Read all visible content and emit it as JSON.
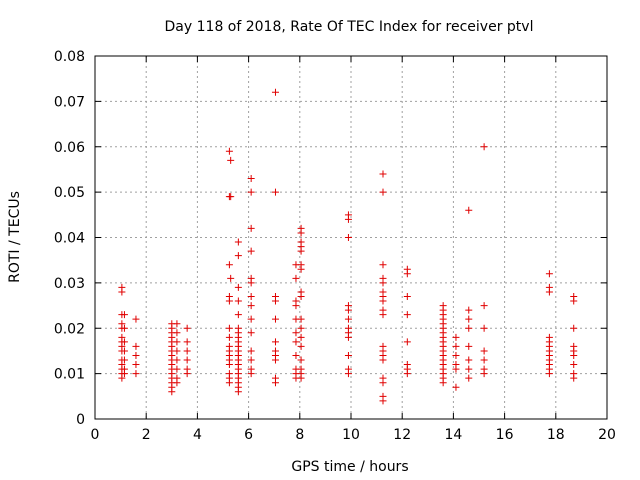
{
  "chart_data": {
    "type": "scatter",
    "title": "Day 118 of 2018, Rate Of TEC Index for receiver ptvl",
    "xlabel": "GPS time / hours",
    "ylabel": "ROTI / TECUs",
    "xlim": [
      0,
      20
    ],
    "ylim": [
      0,
      0.08
    ],
    "x_ticks": [
      0,
      2,
      4,
      6,
      8,
      10,
      12,
      14,
      16,
      18,
      20
    ],
    "x_tick_labels": [
      "0",
      "2",
      "4",
      "6",
      "8",
      "10",
      "12",
      "14",
      "16",
      "18",
      "20"
    ],
    "y_ticks": [
      0,
      0.01,
      0.02,
      0.03,
      0.04,
      0.05,
      0.06,
      0.07,
      0.08
    ],
    "y_tick_labels": [
      "0",
      "0.01",
      "0.02",
      "0.03",
      "0.04",
      "0.05",
      "0.06",
      "0.07",
      "0.08"
    ],
    "grid": true,
    "marker": "+",
    "color": "#e00000",
    "series": [
      {
        "name": "ROTI",
        "points": [
          [
            1.05,
            0.029
          ],
          [
            1.05,
            0.028
          ],
          [
            1.05,
            0.023
          ],
          [
            1.05,
            0.021
          ],
          [
            1.05,
            0.02
          ],
          [
            1.05,
            0.018
          ],
          [
            1.05,
            0.017
          ],
          [
            1.05,
            0.016
          ],
          [
            1.05,
            0.015
          ],
          [
            1.05,
            0.013
          ],
          [
            1.05,
            0.012
          ],
          [
            1.05,
            0.011
          ],
          [
            1.05,
            0.01
          ],
          [
            1.05,
            0.009
          ],
          [
            1.15,
            0.023
          ],
          [
            1.15,
            0.02
          ],
          [
            1.15,
            0.017
          ],
          [
            1.15,
            0.015
          ],
          [
            1.15,
            0.013
          ],
          [
            1.15,
            0.011
          ],
          [
            1.15,
            0.01
          ],
          [
            1.6,
            0.022
          ],
          [
            1.6,
            0.016
          ],
          [
            1.6,
            0.014
          ],
          [
            1.6,
            0.012
          ],
          [
            1.6,
            0.01
          ],
          [
            3.0,
            0.021
          ],
          [
            3.0,
            0.02
          ],
          [
            3.0,
            0.019
          ],
          [
            3.0,
            0.018
          ],
          [
            3.0,
            0.017
          ],
          [
            3.0,
            0.016
          ],
          [
            3.0,
            0.015
          ],
          [
            3.0,
            0.014
          ],
          [
            3.0,
            0.013
          ],
          [
            3.0,
            0.012
          ],
          [
            3.0,
            0.011
          ],
          [
            3.0,
            0.01
          ],
          [
            3.0,
            0.009
          ],
          [
            3.0,
            0.008
          ],
          [
            3.0,
            0.007
          ],
          [
            3.0,
            0.006
          ],
          [
            3.2,
            0.021
          ],
          [
            3.2,
            0.019
          ],
          [
            3.2,
            0.017
          ],
          [
            3.2,
            0.015
          ],
          [
            3.2,
            0.013
          ],
          [
            3.2,
            0.011
          ],
          [
            3.2,
            0.009
          ],
          [
            3.2,
            0.008
          ],
          [
            3.6,
            0.02
          ],
          [
            3.6,
            0.017
          ],
          [
            3.6,
            0.015
          ],
          [
            3.6,
            0.013
          ],
          [
            3.6,
            0.011
          ],
          [
            3.6,
            0.01
          ],
          [
            5.25,
            0.059
          ],
          [
            5.3,
            0.057
          ],
          [
            5.25,
            0.049
          ],
          [
            5.3,
            0.049
          ],
          [
            5.25,
            0.034
          ],
          [
            5.3,
            0.031
          ],
          [
            5.25,
            0.027
          ],
          [
            5.25,
            0.026
          ],
          [
            5.25,
            0.02
          ],
          [
            5.25,
            0.018
          ],
          [
            5.25,
            0.016
          ],
          [
            5.25,
            0.015
          ],
          [
            5.25,
            0.014
          ],
          [
            5.25,
            0.013
          ],
          [
            5.25,
            0.012
          ],
          [
            5.25,
            0.01
          ],
          [
            5.25,
            0.009
          ],
          [
            5.25,
            0.008
          ],
          [
            5.6,
            0.039
          ],
          [
            5.6,
            0.036
          ],
          [
            5.6,
            0.029
          ],
          [
            5.6,
            0.026
          ],
          [
            5.6,
            0.023
          ],
          [
            5.6,
            0.02
          ],
          [
            5.6,
            0.019
          ],
          [
            5.6,
            0.018
          ],
          [
            5.6,
            0.017
          ],
          [
            5.6,
            0.016
          ],
          [
            5.6,
            0.015
          ],
          [
            5.6,
            0.014
          ],
          [
            5.6,
            0.013
          ],
          [
            5.6,
            0.012
          ],
          [
            5.6,
            0.011
          ],
          [
            5.6,
            0.01
          ],
          [
            5.6,
            0.009
          ],
          [
            5.6,
            0.008
          ],
          [
            5.6,
            0.007
          ],
          [
            5.6,
            0.006
          ],
          [
            6.1,
            0.053
          ],
          [
            6.1,
            0.05
          ],
          [
            6.1,
            0.042
          ],
          [
            6.1,
            0.037
          ],
          [
            6.1,
            0.031
          ],
          [
            6.1,
            0.03
          ],
          [
            6.1,
            0.027
          ],
          [
            6.1,
            0.025
          ],
          [
            6.1,
            0.022
          ],
          [
            6.1,
            0.019
          ],
          [
            6.1,
            0.015
          ],
          [
            6.1,
            0.013
          ],
          [
            6.1,
            0.011
          ],
          [
            6.1,
            0.01
          ],
          [
            7.05,
            0.072
          ],
          [
            7.05,
            0.05
          ],
          [
            7.05,
            0.027
          ],
          [
            7.05,
            0.026
          ],
          [
            7.05,
            0.022
          ],
          [
            7.05,
            0.017
          ],
          [
            7.05,
            0.015
          ],
          [
            7.05,
            0.014
          ],
          [
            7.05,
            0.013
          ],
          [
            7.05,
            0.009
          ],
          [
            7.05,
            0.008
          ],
          [
            7.85,
            0.034
          ],
          [
            7.85,
            0.031
          ],
          [
            7.85,
            0.026
          ],
          [
            7.85,
            0.025
          ],
          [
            7.85,
            0.022
          ],
          [
            7.85,
            0.019
          ],
          [
            7.85,
            0.017
          ],
          [
            7.85,
            0.014
          ],
          [
            7.85,
            0.011
          ],
          [
            7.85,
            0.01
          ],
          [
            7.85,
            0.009
          ],
          [
            8.05,
            0.042
          ],
          [
            8.05,
            0.041
          ],
          [
            8.05,
            0.039
          ],
          [
            8.05,
            0.038
          ],
          [
            8.05,
            0.037
          ],
          [
            8.05,
            0.034
          ],
          [
            8.05,
            0.033
          ],
          [
            8.05,
            0.028
          ],
          [
            8.05,
            0.027
          ],
          [
            8.05,
            0.022
          ],
          [
            8.05,
            0.02
          ],
          [
            8.05,
            0.018
          ],
          [
            8.05,
            0.016
          ],
          [
            8.05,
            0.013
          ],
          [
            8.05,
            0.011
          ],
          [
            8.05,
            0.01
          ],
          [
            8.05,
            0.009
          ],
          [
            9.9,
            0.045
          ],
          [
            9.9,
            0.044
          ],
          [
            9.9,
            0.04
          ],
          [
            9.9,
            0.025
          ],
          [
            9.9,
            0.024
          ],
          [
            9.9,
            0.022
          ],
          [
            9.9,
            0.02
          ],
          [
            9.9,
            0.019
          ],
          [
            9.9,
            0.018
          ],
          [
            9.9,
            0.014
          ],
          [
            9.9,
            0.011
          ],
          [
            9.9,
            0.01
          ],
          [
            11.25,
            0.054
          ],
          [
            11.25,
            0.05
          ],
          [
            11.25,
            0.034
          ],
          [
            11.25,
            0.031
          ],
          [
            11.25,
            0.03
          ],
          [
            11.25,
            0.028
          ],
          [
            11.25,
            0.027
          ],
          [
            11.25,
            0.026
          ],
          [
            11.25,
            0.024
          ],
          [
            11.25,
            0.023
          ],
          [
            11.25,
            0.016
          ],
          [
            11.25,
            0.015
          ],
          [
            11.25,
            0.014
          ],
          [
            11.25,
            0.013
          ],
          [
            11.25,
            0.009
          ],
          [
            11.25,
            0.008
          ],
          [
            11.25,
            0.005
          ],
          [
            11.25,
            0.004
          ],
          [
            12.2,
            0.033
          ],
          [
            12.2,
            0.032
          ],
          [
            12.2,
            0.027
          ],
          [
            12.2,
            0.023
          ],
          [
            12.2,
            0.017
          ],
          [
            12.2,
            0.012
          ],
          [
            12.2,
            0.011
          ],
          [
            12.2,
            0.01
          ],
          [
            13.6,
            0.025
          ],
          [
            13.6,
            0.024
          ],
          [
            13.6,
            0.023
          ],
          [
            13.6,
            0.022
          ],
          [
            13.6,
            0.021
          ],
          [
            13.6,
            0.02
          ],
          [
            13.6,
            0.019
          ],
          [
            13.6,
            0.018
          ],
          [
            13.6,
            0.017
          ],
          [
            13.6,
            0.016
          ],
          [
            13.6,
            0.015
          ],
          [
            13.6,
            0.014
          ],
          [
            13.6,
            0.013
          ],
          [
            13.6,
            0.012
          ],
          [
            13.6,
            0.011
          ],
          [
            13.6,
            0.01
          ],
          [
            13.6,
            0.009
          ],
          [
            13.6,
            0.008
          ],
          [
            14.1,
            0.018
          ],
          [
            14.1,
            0.016
          ],
          [
            14.1,
            0.014
          ],
          [
            14.1,
            0.012
          ],
          [
            14.1,
            0.011
          ],
          [
            14.1,
            0.007
          ],
          [
            14.6,
            0.046
          ],
          [
            14.6,
            0.024
          ],
          [
            14.6,
            0.022
          ],
          [
            14.6,
            0.02
          ],
          [
            14.6,
            0.016
          ],
          [
            14.6,
            0.013
          ],
          [
            14.6,
            0.011
          ],
          [
            14.6,
            0.009
          ],
          [
            15.2,
            0.06
          ],
          [
            15.2,
            0.025
          ],
          [
            15.2,
            0.02
          ],
          [
            15.2,
            0.015
          ],
          [
            15.2,
            0.013
          ],
          [
            15.2,
            0.011
          ],
          [
            15.2,
            0.01
          ],
          [
            17.75,
            0.032
          ],
          [
            17.75,
            0.029
          ],
          [
            17.75,
            0.028
          ],
          [
            17.75,
            0.018
          ],
          [
            17.75,
            0.017
          ],
          [
            17.75,
            0.016
          ],
          [
            17.75,
            0.015
          ],
          [
            17.75,
            0.014
          ],
          [
            17.75,
            0.013
          ],
          [
            17.75,
            0.012
          ],
          [
            17.75,
            0.011
          ],
          [
            17.75,
            0.01
          ],
          [
            18.7,
            0.027
          ],
          [
            18.7,
            0.026
          ],
          [
            18.7,
            0.02
          ],
          [
            18.7,
            0.016
          ],
          [
            18.7,
            0.015
          ],
          [
            18.7,
            0.014
          ],
          [
            18.7,
            0.012
          ],
          [
            18.7,
            0.01
          ],
          [
            18.7,
            0.009
          ]
        ]
      }
    ]
  }
}
